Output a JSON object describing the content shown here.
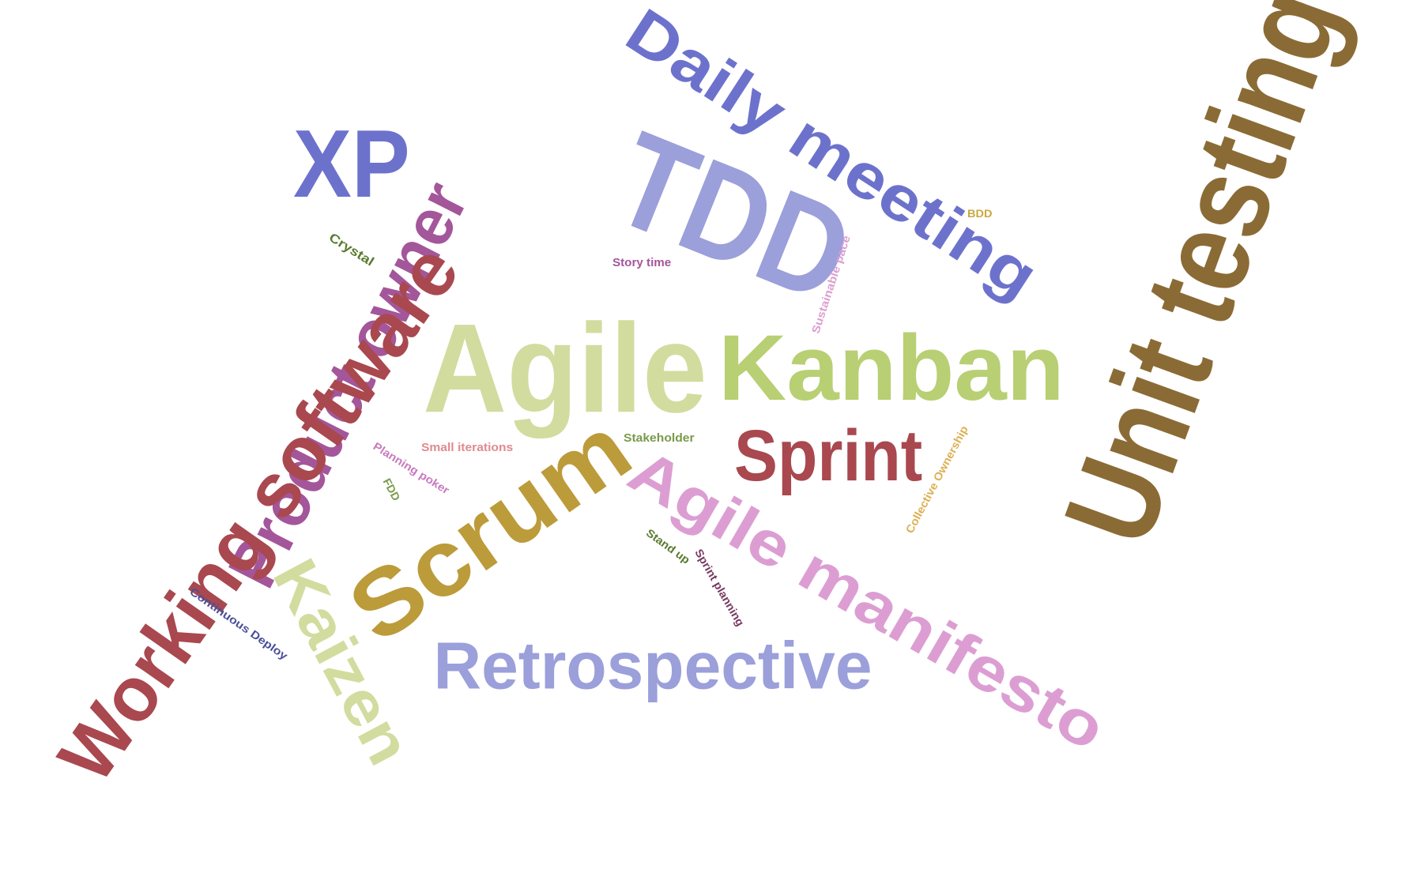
{
  "words": [
    {
      "text": "Agile",
      "color": "#d2dc9f"
    },
    {
      "text": "Kanban",
      "color": "#b8cf73"
    },
    {
      "text": "Unit testing",
      "color": "#8b6b35"
    },
    {
      "text": "TDD",
      "color": "#9b9fda"
    },
    {
      "text": "Daily meeting",
      "color": "#6c72cc"
    },
    {
      "text": "XP",
      "color": "#6c72cc"
    },
    {
      "text": "Product owner",
      "color": "#a4569a"
    },
    {
      "text": "Working software",
      "color": "#a9484f"
    },
    {
      "text": "Scrum",
      "color": "#bc9b3b"
    },
    {
      "text": "Sprint",
      "color": "#a9484f"
    },
    {
      "text": "Agile manifesto",
      "color": "#dc9ed2"
    },
    {
      "text": "Retrospective",
      "color": "#9b9fda"
    },
    {
      "text": "Kaizen",
      "color": "#d2dc9f"
    },
    {
      "text": "Crystal",
      "color": "#5a7a30"
    },
    {
      "text": "Story time",
      "color": "#a4569a"
    },
    {
      "text": "BDD",
      "color": "#c9a83e"
    },
    {
      "text": "Sustainable pace",
      "color": "#dc9ed2"
    },
    {
      "text": "Small iterations",
      "color": "#e08a90"
    },
    {
      "text": "Stakeholder",
      "color": "#7a9a4a"
    },
    {
      "text": "Planning poker",
      "color": "#c87abe"
    },
    {
      "text": "FDD",
      "color": "#7a9a4a"
    },
    {
      "text": "Collective Ownership",
      "color": "#dcb053"
    },
    {
      "text": "Stand up",
      "color": "#5a7a30"
    },
    {
      "text": "Sprint planning",
      "color": "#7a3a62"
    },
    {
      "text": "Continuous Deploy",
      "color": "#4a4f9a"
    }
  ]
}
